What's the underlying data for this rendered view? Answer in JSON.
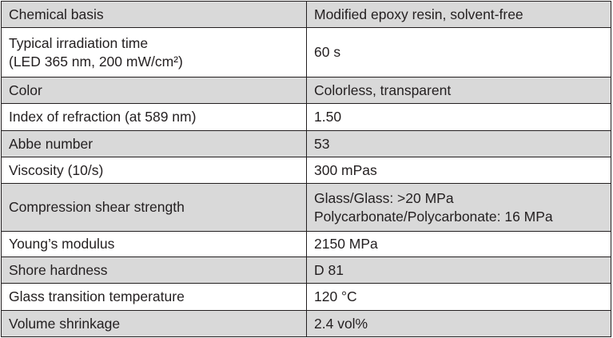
{
  "table": {
    "rows": [
      [
        [
          "Chemical basis"
        ],
        [
          "Modified epoxy resin, solvent-free"
        ]
      ],
      [
        [
          "Typical irradiation time",
          "(LED 365 nm, 200 mW/cm²)"
        ],
        [
          "60 s"
        ]
      ],
      [
        [
          "Color"
        ],
        [
          "Colorless, transparent"
        ]
      ],
      [
        [
          "Index of refraction (at 589 nm)"
        ],
        [
          "1.50"
        ]
      ],
      [
        [
          "Abbe number"
        ],
        [
          "53"
        ]
      ],
      [
        [
          "Viscosity (10/s)"
        ],
        [
          "300 mPas"
        ]
      ],
      [
        [
          "Compression shear strength"
        ],
        [
          "Glass/Glass: >20 MPa",
          "Polycarbonate/Polycarbonate: 16 MPa"
        ]
      ],
      [
        [
          "Young’s modulus"
        ],
        [
          "2150 MPa"
        ]
      ],
      [
        [
          "Shore hardness"
        ],
        [
          "D 81"
        ]
      ],
      [
        [
          "Glass transition temperature"
        ],
        [
          "120 °C"
        ]
      ],
      [
        [
          "Volume shrinkage"
        ],
        [
          "2.4 vol%"
        ]
      ]
    ]
  }
}
